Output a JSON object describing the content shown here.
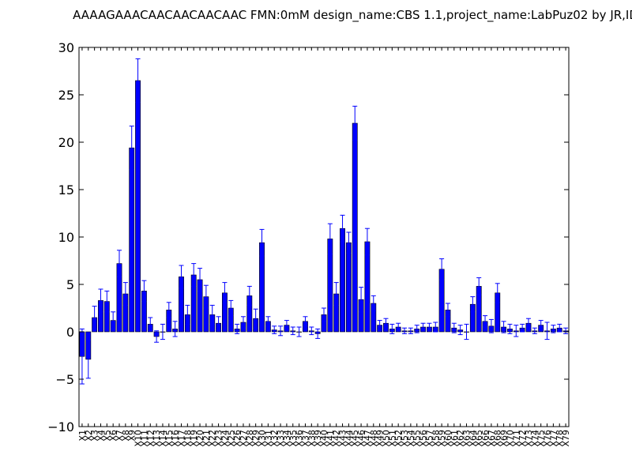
{
  "chart_data": {
    "type": "bar",
    "title": "AAAAGAAACAACAACAACAAC  FMN:0mM  design_name:CBS 1.1,project_name:LabPuz02 by JR,ID",
    "xlabel": "",
    "ylabel": "",
    "ylim": [
      -10,
      30
    ],
    "yticks": [
      -10,
      -5,
      0,
      5,
      10,
      15,
      20,
      25,
      30
    ],
    "grid": false,
    "bar_color": "#0000ff",
    "error_color": "#0000ff",
    "categories": [
      "X1",
      "X2",
      "X3",
      "X4",
      "X5",
      "X6",
      "X7",
      "X8",
      "X9",
      "X10",
      "X11",
      "X12",
      "X13",
      "X14",
      "X15",
      "X16",
      "X17",
      "X18",
      "X19",
      "X20",
      "X21",
      "X22",
      "X23",
      "X24",
      "X25",
      "X26",
      "X27",
      "X28",
      "X29",
      "X30",
      "X31",
      "X32",
      "X33",
      "X34",
      "X35",
      "X36",
      "X37",
      "X38",
      "X39",
      "X40",
      "X41",
      "X42",
      "X43",
      "X44",
      "X45",
      "X46",
      "X47",
      "X48",
      "X49",
      "X50",
      "X51",
      "X52",
      "X53",
      "X54",
      "X55",
      "X56",
      "X57",
      "X58",
      "X59",
      "X60",
      "X61",
      "X62",
      "X63",
      "X64",
      "X65",
      "X66",
      "X67",
      "X68",
      "X69",
      "X70",
      "X71",
      "X72",
      "X73",
      "X74",
      "X75",
      "X76",
      "X77",
      "X78",
      "X79"
    ],
    "values": [
      -2.6,
      -2.9,
      1.5,
      3.3,
      3.2,
      1.2,
      7.2,
      4.0,
      19.4,
      26.5,
      4.3,
      0.8,
      -0.5,
      0.0,
      2.3,
      0.3,
      5.8,
      1.8,
      6.0,
      5.5,
      3.7,
      1.8,
      0.9,
      4.1,
      2.5,
      0.3,
      1.0,
      3.8,
      1.4,
      9.4,
      1.1,
      0.2,
      0.1,
      0.7,
      0.1,
      0.0,
      1.1,
      0.1,
      -0.2,
      1.8,
      9.8,
      4.0,
      10.9,
      9.4,
      22.0,
      3.4,
      9.5,
      3.0,
      0.7,
      0.9,
      0.3,
      0.5,
      0.1,
      0.1,
      0.3,
      0.5,
      0.5,
      0.5,
      6.6,
      2.3,
      0.4,
      0.2,
      0.0,
      2.9,
      4.8,
      1.1,
      0.6,
      4.1,
      0.5,
      0.3,
      0.1,
      0.4,
      0.9,
      0.1,
      0.7,
      0.1,
      0.3,
      0.4,
      0.1
    ],
    "errors": [
      2.9,
      2.0,
      1.2,
      1.2,
      1.1,
      0.9,
      1.4,
      1.2,
      2.3,
      2.3,
      1.1,
      0.7,
      0.6,
      0.8,
      0.8,
      0.8,
      1.2,
      1.0,
      1.2,
      1.2,
      1.2,
      1.0,
      0.7,
      1.1,
      0.8,
      0.5,
      0.6,
      1.0,
      1.0,
      1.4,
      0.5,
      0.4,
      0.5,
      0.5,
      0.4,
      0.5,
      0.5,
      0.4,
      0.5,
      0.7,
      1.6,
      1.2,
      1.4,
      1.1,
      1.8,
      1.3,
      1.4,
      0.8,
      0.5,
      0.5,
      0.5,
      0.4,
      0.3,
      0.3,
      0.4,
      0.4,
      0.4,
      0.5,
      1.1,
      0.7,
      0.5,
      0.5,
      0.8,
      0.8,
      0.9,
      0.6,
      0.7,
      1.0,
      0.6,
      0.5,
      0.6,
      0.4,
      0.5,
      0.3,
      0.5,
      0.9,
      0.4,
      0.4,
      0.3
    ]
  }
}
